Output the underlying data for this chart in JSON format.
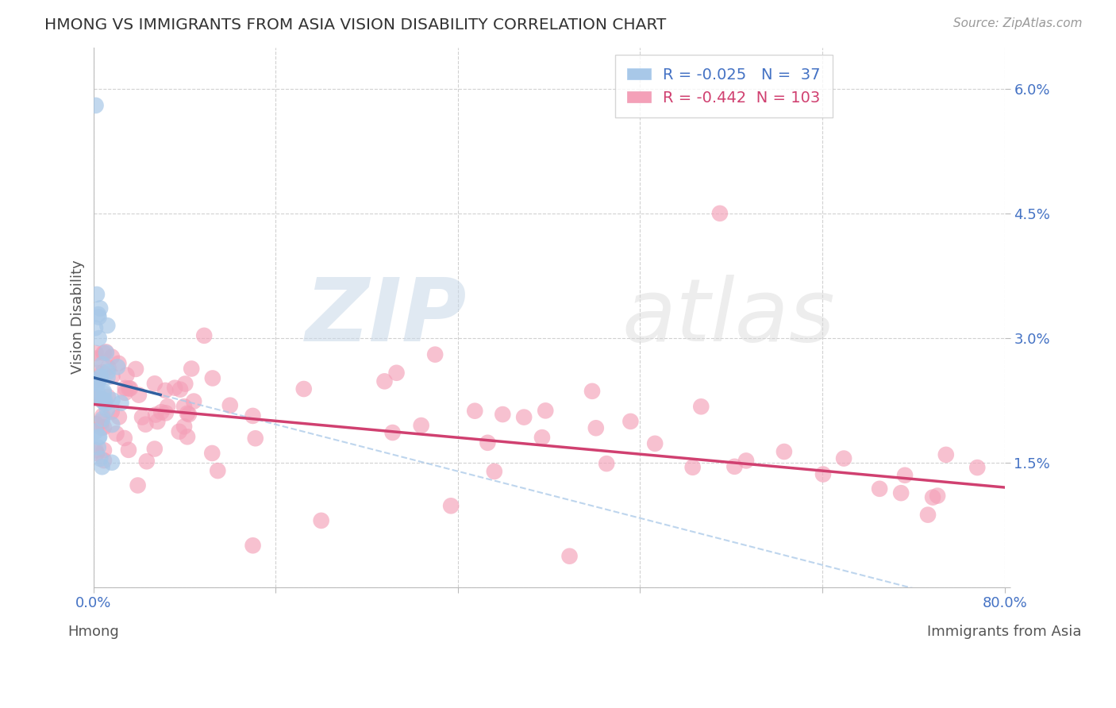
{
  "title": "HMONG VS IMMIGRANTS FROM ASIA VISION DISABILITY CORRELATION CHART",
  "source": "Source: ZipAtlas.com",
  "xlabel_hmong": "Hmong",
  "xlabel_asia": "Immigrants from Asia",
  "ylabel": "Vision Disability",
  "watermark_zip": "ZIP",
  "watermark_atlas": "atlas",
  "blue_R": -0.025,
  "blue_N": 37,
  "pink_R": -0.442,
  "pink_N": 103,
  "xlim": [
    0.0,
    0.8
  ],
  "ylim": [
    0.0,
    0.065
  ],
  "ytick_vals": [
    0.0,
    0.015,
    0.03,
    0.045,
    0.06
  ],
  "ytick_labels": [
    "",
    "1.5%",
    "3.0%",
    "4.5%",
    "6.0%"
  ],
  "xtick_vals": [
    0.0,
    0.16,
    0.32,
    0.48,
    0.64,
    0.8
  ],
  "xtick_labels": [
    "0.0%",
    "",
    "",
    "",
    "",
    "80.0%"
  ],
  "background_color": "#ffffff",
  "grid_color": "#cccccc",
  "blue_color": "#a8c8e8",
  "blue_line_color": "#3060a0",
  "pink_color": "#f4a0b8",
  "pink_line_color": "#d04070",
  "axis_label_color": "#4472c4",
  "legend_blue_color": "#4472c4",
  "legend_pink_color": "#d04070",
  "title_color": "#333333",
  "source_color": "#999999"
}
